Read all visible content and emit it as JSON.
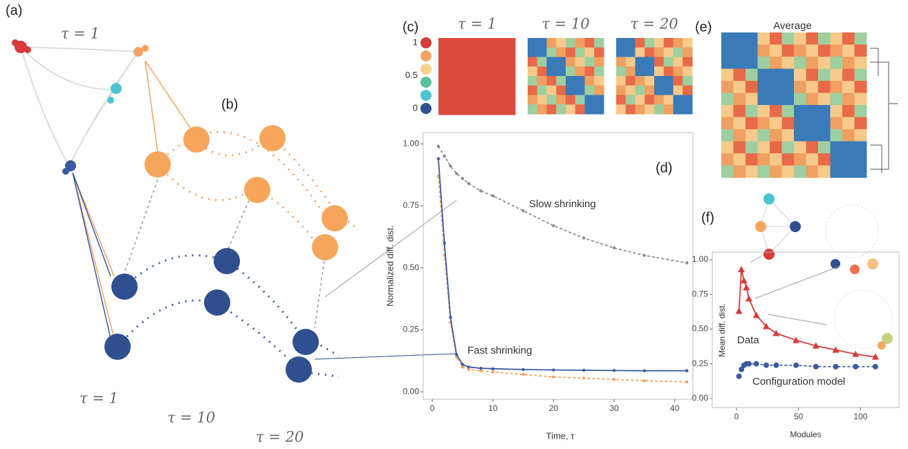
{
  "figure": {
    "panel_labels": [
      "(a)",
      "(b)",
      "(c)",
      "(d)",
      "(e)",
      "(f)"
    ],
    "tau_labels": [
      "τ = 1",
      "τ = 1",
      "τ = 10",
      "τ = 20"
    ],
    "heatmap_titles": [
      "τ = 1",
      "τ = 10",
      "τ = 20"
    ],
    "average_title": "Average",
    "colorbar_ticks": [
      1,
      0.5,
      0
    ]
  },
  "chart_data": [
    {
      "type": "line",
      "x_label": "Time, τ",
      "y_label": "Normalized diff. dist.",
      "x": [
        1,
        2,
        3,
        4,
        5,
        6,
        8,
        10,
        15,
        20,
        25,
        30,
        35,
        42
      ],
      "series": [
        {
          "color": "#8c8c8c",
          "marker": "circle",
          "dash": true,
          "values": [
            0.99,
            0.95,
            0.91,
            0.88,
            0.86,
            0.84,
            0.81,
            0.79,
            0.73,
            0.67,
            0.62,
            0.58,
            0.55,
            0.52
          ]
        },
        {
          "color": "#f4a261",
          "marker": "circle",
          "dash": true,
          "values": [
            0.87,
            0.55,
            0.28,
            0.14,
            0.1,
            0.09,
            0.085,
            0.08,
            0.07,
            0.06,
            0.055,
            0.05,
            0.045,
            0.04
          ]
        },
        {
          "color": "#3b5aa0",
          "marker": "circle",
          "dash": false,
          "values": [
            0.94,
            0.6,
            0.3,
            0.15,
            0.11,
            0.1,
            0.095,
            0.093,
            0.09,
            0.088,
            0.087,
            0.086,
            0.085,
            0.085
          ]
        }
      ],
      "annotations": [
        "Slow shrinking",
        "Fast shrinking"
      ],
      "xlim": [
        -1.5,
        43
      ],
      "ylim": [
        -0.03,
        1.045
      ],
      "xticks": [
        0,
        10,
        20,
        30,
        40
      ],
      "yticks": [
        {
          "value": 0,
          "label": "0.00"
        },
        {
          "value": 0.25,
          "label": "0.25"
        },
        {
          "value": 0.5,
          "label": "0.50"
        },
        {
          "value": 0.75,
          "label": "0.75"
        },
        {
          "value": 1,
          "label": "1.00"
        }
      ]
    },
    {
      "type": "line",
      "x_label": "Modules",
      "y_label": "Mean diff. dist.",
      "x": [
        2,
        4,
        6,
        8,
        10,
        16,
        24,
        32,
        48,
        64,
        80,
        96,
        112
      ],
      "series": [
        {
          "name": "Data",
          "color": "#d63a3a",
          "marker": "triangle",
          "dash": false,
          "values": [
            0.63,
            0.93,
            0.85,
            0.8,
            0.72,
            0.6,
            0.52,
            0.47,
            0.42,
            0.38,
            0.35,
            0.32,
            0.3
          ]
        },
        {
          "name": "Configuration model",
          "color": "#3b5aa0",
          "marker": "circle",
          "dash": true,
          "values": [
            0.16,
            0.21,
            0.24,
            0.25,
            0.25,
            0.25,
            0.24,
            0.24,
            0.24,
            0.23,
            0.23,
            0.23,
            0.23
          ]
        }
      ],
      "xlim": [
        -19.5,
        131
      ],
      "ylim": [
        -0.065,
        1.055
      ],
      "xticks": [
        0,
        50,
        100
      ],
      "yticks": [
        {
          "value": 0,
          "label": "0.00"
        },
        {
          "value": 0.25,
          "label": "0.25"
        },
        {
          "value": 0.5,
          "label": "0.50"
        },
        {
          "value": 0.75,
          "label": "0.75"
        },
        {
          "value": 1,
          "label": "1.00"
        }
      ]
    }
  ]
}
